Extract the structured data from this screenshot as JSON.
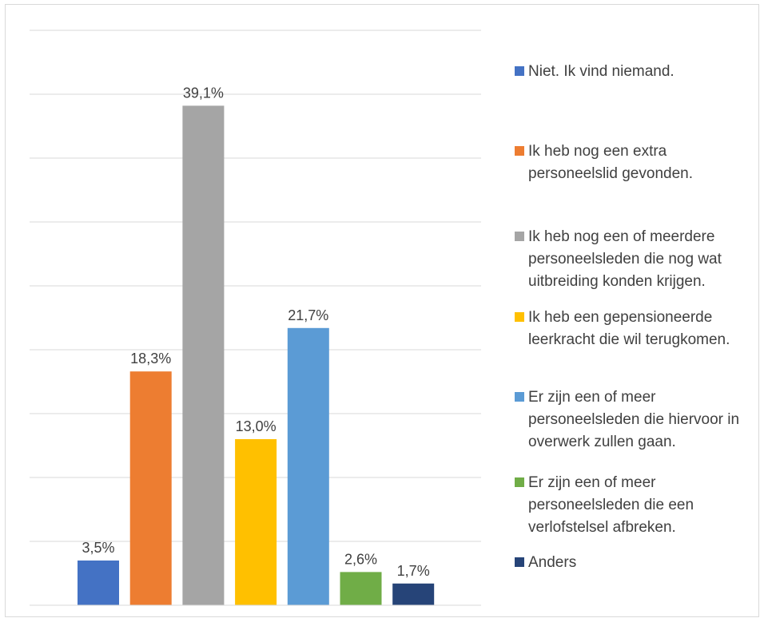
{
  "chart_data": {
    "type": "bar",
    "title": "",
    "xlabel": "",
    "ylabel": "",
    "ylim": [
      0,
      45
    ],
    "grid": true,
    "legend_position": "right",
    "series": [
      {
        "name": "Niet. Ik vind niemand.",
        "value": 3.5,
        "label": "3,5%",
        "color": "#4472c4"
      },
      {
        "name": "Ik heb nog een extra personeelslid gevonden.",
        "value": 18.3,
        "label": "18,3%",
        "color": "#ed7d31"
      },
      {
        "name": "Ik heb nog een of meerdere personeelsleden die nog wat uitbreiding konden krijgen.",
        "value": 39.1,
        "label": "39,1%",
        "color": "#a5a5a5"
      },
      {
        "name": "Ik heb een gepensioneerde leerkracht die wil terugkomen.",
        "value": 13.0,
        "label": "13,0%",
        "color": "#ffc000"
      },
      {
        "name": "Er zijn een of meer personeelsleden die hiervoor in overwerk zullen gaan.",
        "value": 21.7,
        "label": "21,7%",
        "color": "#5b9bd5"
      },
      {
        "name": "Er zijn een of meer personeelsleden die een verlofstelsel afbreken.",
        "value": 2.6,
        "label": "2,6%",
        "color": "#70ad47"
      },
      {
        "name": "Anders",
        "value": 1.7,
        "label": "1,7%",
        "color": "#264478"
      }
    ]
  }
}
